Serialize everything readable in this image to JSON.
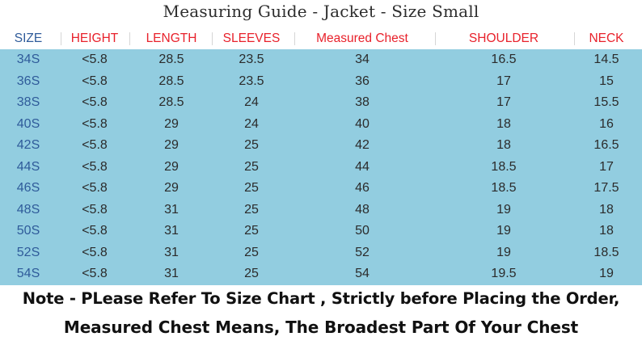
{
  "title": "Measuring Guide - Jacket - Size Small",
  "colors": {
    "table_background": "#92cde0",
    "size_column_text": "#2f5b9a",
    "size_header": "#2f5b9a",
    "other_headers": "#e8212b"
  },
  "columns": [
    {
      "key": "size",
      "label": "SIZE"
    },
    {
      "key": "height",
      "label": "HEIGHT"
    },
    {
      "key": "length",
      "label": "LENGTH"
    },
    {
      "key": "sleeves",
      "label": "SLEEVES"
    },
    {
      "key": "chest",
      "label": "Measured Chest"
    },
    {
      "key": "shoulder",
      "label": "SHOULDER"
    },
    {
      "key": "neck",
      "label": "NECK"
    }
  ],
  "rows": [
    [
      "34S",
      "<5.8",
      "28.5",
      "23.5",
      "34",
      "16.5",
      "14.5"
    ],
    [
      "36S",
      "<5.8",
      "28.5",
      "23.5",
      "36",
      "17",
      "15"
    ],
    [
      "38S",
      "<5.8",
      "28.5",
      "24",
      "38",
      "17",
      "15.5"
    ],
    [
      "40S",
      "<5.8",
      "29",
      "24",
      "40",
      "18",
      "16"
    ],
    [
      "42S",
      "<5.8",
      "29",
      "25",
      "42",
      "18",
      "16.5"
    ],
    [
      "44S",
      "<5.8",
      "29",
      "25",
      "44",
      "18.5",
      "17"
    ],
    [
      "46S",
      "<5.8",
      "29",
      "25",
      "46",
      "18.5",
      "17.5"
    ],
    [
      "48S",
      "<5.8",
      "31",
      "25",
      "48",
      "19",
      "18"
    ],
    [
      "50S",
      "<5.8",
      "31",
      "25",
      "50",
      "19",
      "18"
    ],
    [
      "52S",
      "<5.8",
      "31",
      "25",
      "52",
      "19",
      "18.5"
    ],
    [
      "54S",
      "<5.8",
      "31",
      "25",
      "54",
      "19.5",
      "19"
    ]
  ],
  "notes": [
    "Note - PLease Refer To Size Chart , Strictly before Placing the Order,",
    "Measured Chest Means, The Broadest Part Of Your Chest"
  ]
}
